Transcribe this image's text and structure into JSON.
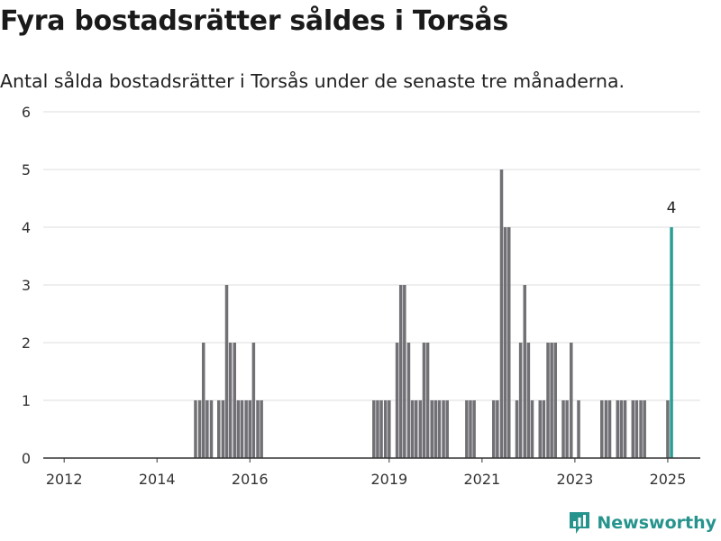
{
  "title": "Fyra bostadsrätter såldes i Torsås",
  "subtitle": "Antal sålda bostadsrätter i Torsås under de senaste tre månaderna.",
  "brand": "Newsworthy",
  "colors": {
    "bar": "#707075",
    "highlight": "#2a9d95",
    "grid": "#dcdcdc",
    "axis": "#333333"
  },
  "chart_data": {
    "type": "bar",
    "xlabel": "",
    "ylabel": "",
    "ylim": [
      0,
      6
    ],
    "yticks": [
      0,
      1,
      2,
      3,
      4,
      5,
      6
    ],
    "xlim": [
      2011.55,
      2025.7
    ],
    "xticks": [
      2012,
      2014,
      2016,
      2019,
      2021,
      2023,
      2025
    ],
    "grid": "horizontal",
    "series": [
      {
        "x": [
          2014.83,
          2014.92,
          2015.0,
          2015.08,
          2015.17,
          2015.33,
          2015.42,
          2015.5,
          2015.58,
          2015.67,
          2015.75,
          2015.83,
          2015.92,
          2016.0,
          2016.08,
          2016.17,
          2016.25,
          2018.67,
          2018.75,
          2018.83,
          2018.92,
          2019.0,
          2019.17,
          2019.25,
          2019.33,
          2019.42,
          2019.5,
          2019.58,
          2019.67,
          2019.75,
          2019.83,
          2019.92,
          2020.0,
          2020.08,
          2020.17,
          2020.25,
          2020.67,
          2020.75,
          2020.83,
          2021.25,
          2021.33,
          2021.42,
          2021.5,
          2021.58,
          2021.75,
          2021.83,
          2021.92,
          2022.0,
          2022.08,
          2022.25,
          2022.33,
          2022.42,
          2022.5,
          2022.58,
          2022.75,
          2022.83,
          2022.92,
          2023.08,
          2023.58,
          2023.67,
          2023.75,
          2023.92,
          2024.0,
          2024.08,
          2024.25,
          2024.33,
          2024.42,
          2024.5,
          2025.0
        ],
        "values": [
          1,
          1,
          2,
          1,
          1,
          1,
          1,
          3,
          2,
          2,
          1,
          1,
          1,
          1,
          2,
          1,
          1,
          1,
          1,
          1,
          1,
          1,
          2,
          3,
          3,
          2,
          1,
          1,
          1,
          2,
          2,
          1,
          1,
          1,
          1,
          1,
          1,
          1,
          1,
          1,
          1,
          5,
          4,
          4,
          1,
          2,
          3,
          2,
          1,
          1,
          1,
          2,
          2,
          2,
          1,
          1,
          2,
          1,
          1,
          1,
          1,
          1,
          1,
          1,
          1,
          1,
          1,
          1,
          1
        ]
      },
      {
        "x": [
          2025.08
        ],
        "values": [
          4
        ],
        "highlight": true,
        "label": "4"
      }
    ]
  }
}
